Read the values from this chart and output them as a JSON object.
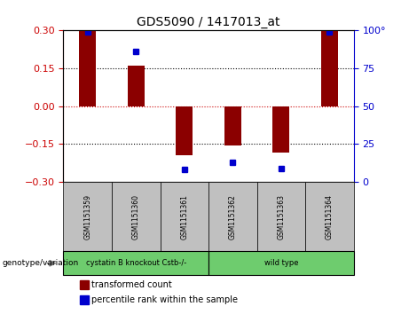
{
  "title": "GDS5090 / 1417013_at",
  "samples": [
    "GSM1151359",
    "GSM1151360",
    "GSM1151361",
    "GSM1151362",
    "GSM1151363",
    "GSM1151364"
  ],
  "bar_values": [
    0.3,
    0.16,
    -0.195,
    -0.155,
    -0.185,
    0.3
  ],
  "percentile_values": [
    99,
    86,
    8,
    13,
    9,
    99
  ],
  "ylim_left": [
    -0.3,
    0.3
  ],
  "ylim_right": [
    0,
    100
  ],
  "yticks_left": [
    -0.3,
    -0.15,
    0,
    0.15,
    0.3
  ],
  "yticks_right": [
    0,
    25,
    50,
    75,
    100
  ],
  "bar_color": "#8B0000",
  "dot_color": "#0000CD",
  "sample_box_color": "#C0C0C0",
  "group1_label": "cystatin B knockout Cstb-/-",
  "group2_label": "wild type",
  "group_color": "#6ECC6E",
  "legend_red_label": "transformed count",
  "legend_blue_label": "percentile rank within the sample",
  "genotype_label": "genotype/variation",
  "zero_line_color": "#CC0000",
  "figsize": [
    4.61,
    3.63
  ],
  "dpi": 100
}
